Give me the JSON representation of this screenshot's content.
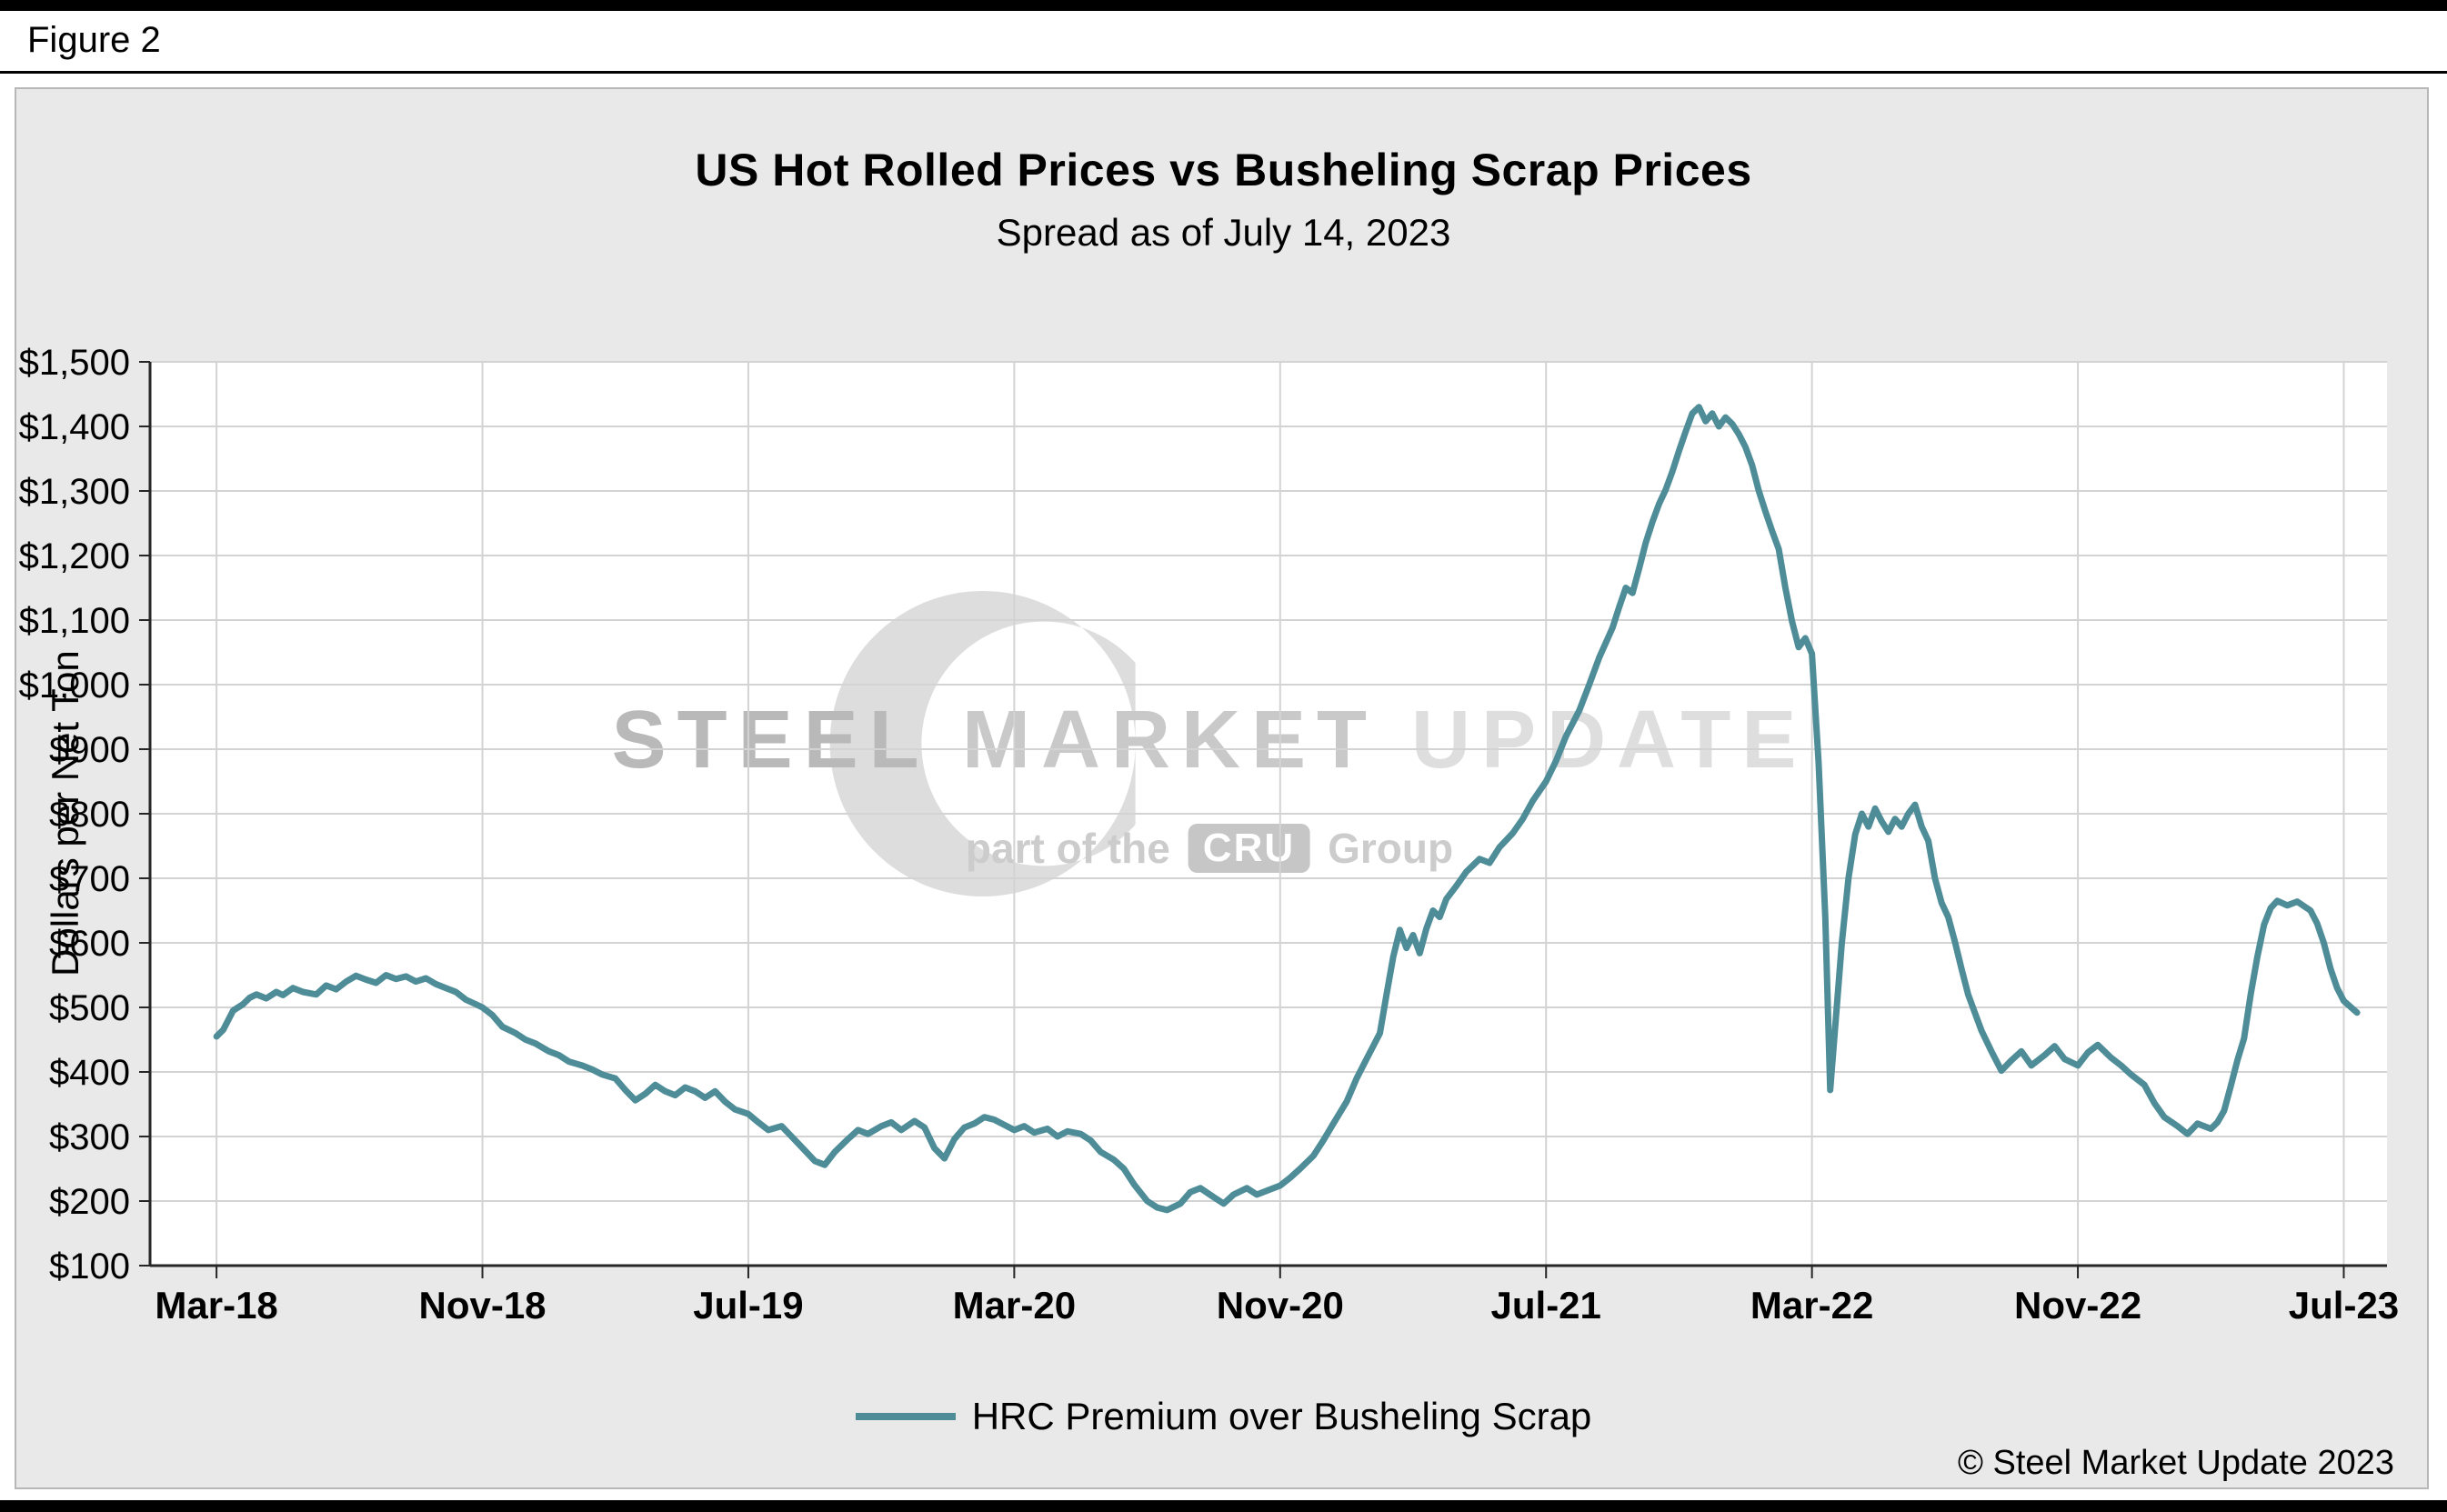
{
  "figure_label": "Figure 2",
  "chart": {
    "title": "US Hot Rolled Prices vs Busheling Scrap Prices",
    "subtitle": "Spread as of July 14, 2023",
    "ylabel": "Dollars per Net Ton",
    "legend_label": "HRC Premium over Busheling Scrap",
    "copyright": "© Steel Market Update 2023",
    "line_color": "#4e8d98"
  },
  "watermark": {
    "line1_a": "STEEL",
    "line1_b": "MARKET",
    "line1_c": "UPDATE",
    "line2_pre": "part of the",
    "line2_logo": "CRU",
    "line2_post": "Group"
  },
  "chart_data": {
    "type": "line",
    "title": "US Hot Rolled Prices vs Busheling Scrap Prices",
    "subtitle": "Spread as of July 14, 2023",
    "xlabel": "",
    "ylabel": "Dollars per Net Ton",
    "grid": true,
    "legend_position": "bottom",
    "y_range": [
      100,
      1500
    ],
    "y_step": 100,
    "y_ticks": [
      {
        "value": 100,
        "label": "$100"
      },
      {
        "value": 200,
        "label": "$200"
      },
      {
        "value": 300,
        "label": "$300"
      },
      {
        "value": 400,
        "label": "$400"
      },
      {
        "value": 500,
        "label": "$500"
      },
      {
        "value": 600,
        "label": "$600"
      },
      {
        "value": 700,
        "label": "$700"
      },
      {
        "value": 800,
        "label": "$800"
      },
      {
        "value": 900,
        "label": "$900"
      },
      {
        "value": 1000,
        "label": "$1,000"
      },
      {
        "value": 1100,
        "label": "$1,100"
      },
      {
        "value": 1200,
        "label": "$1,200"
      },
      {
        "value": 1300,
        "label": "$1,300"
      },
      {
        "value": 1400,
        "label": "$1,400"
      },
      {
        "value": 1500,
        "label": "$1,500"
      }
    ],
    "x_axis_range_months": [
      -2,
      65.3
    ],
    "x_unit": "months since Mar-2018",
    "x_ticks": [
      {
        "month": 0,
        "label": "Mar-18"
      },
      {
        "month": 8,
        "label": "Nov-18"
      },
      {
        "month": 16,
        "label": "Jul-19"
      },
      {
        "month": 24,
        "label": "Mar-20"
      },
      {
        "month": 32,
        "label": "Nov-20"
      },
      {
        "month": 40,
        "label": "Jul-21"
      },
      {
        "month": 48,
        "label": "Mar-22"
      },
      {
        "month": 56,
        "label": "Nov-22"
      },
      {
        "month": 64,
        "label": "Jul-23"
      }
    ],
    "series": [
      {
        "name": "HRC Premium over Busheling Scrap",
        "color": "#4e8d98",
        "points": [
          [
            0,
            455
          ],
          [
            0.2,
            465
          ],
          [
            0.5,
            495
          ],
          [
            0.8,
            505
          ],
          [
            1,
            515
          ],
          [
            1.2,
            520
          ],
          [
            1.5,
            514
          ],
          [
            1.8,
            524
          ],
          [
            2,
            519
          ],
          [
            2.3,
            530
          ],
          [
            2.6,
            524
          ],
          [
            3,
            520
          ],
          [
            3.3,
            534
          ],
          [
            3.6,
            528
          ],
          [
            3.9,
            540
          ],
          [
            4.2,
            549
          ],
          [
            4.5,
            543
          ],
          [
            4.8,
            538
          ],
          [
            5.1,
            550
          ],
          [
            5.4,
            544
          ],
          [
            5.7,
            548
          ],
          [
            6,
            540
          ],
          [
            6.3,
            545
          ],
          [
            6.6,
            536
          ],
          [
            6.9,
            530
          ],
          [
            7.2,
            524
          ],
          [
            7.5,
            512
          ],
          [
            7.8,
            505
          ],
          [
            8,
            500
          ],
          [
            8.3,
            488
          ],
          [
            8.6,
            470
          ],
          [
            9,
            460
          ],
          [
            9.3,
            450
          ],
          [
            9.6,
            444
          ],
          [
            10,
            432
          ],
          [
            10.3,
            426
          ],
          [
            10.6,
            416
          ],
          [
            11,
            410
          ],
          [
            11.3,
            404
          ],
          [
            11.6,
            396
          ],
          [
            12,
            390
          ],
          [
            12.3,
            372
          ],
          [
            12.6,
            356
          ],
          [
            12.9,
            366
          ],
          [
            13.2,
            380
          ],
          [
            13.5,
            370
          ],
          [
            13.8,
            364
          ],
          [
            14.1,
            376
          ],
          [
            14.4,
            370
          ],
          [
            14.7,
            360
          ],
          [
            15,
            370
          ],
          [
            15.3,
            354
          ],
          [
            15.6,
            342
          ],
          [
            16,
            335
          ],
          [
            16.3,
            322
          ],
          [
            16.6,
            310
          ],
          [
            17,
            316
          ],
          [
            17.3,
            300
          ],
          [
            17.6,
            284
          ],
          [
            18,
            262
          ],
          [
            18.3,
            256
          ],
          [
            18.6,
            276
          ],
          [
            19,
            296
          ],
          [
            19.3,
            310
          ],
          [
            19.6,
            304
          ],
          [
            20,
            316
          ],
          [
            20.3,
            322
          ],
          [
            20.6,
            310
          ],
          [
            21,
            324
          ],
          [
            21.3,
            314
          ],
          [
            21.6,
            282
          ],
          [
            21.9,
            266
          ],
          [
            22.2,
            296
          ],
          [
            22.5,
            314
          ],
          [
            22.8,
            320
          ],
          [
            23.1,
            330
          ],
          [
            23.4,
            326
          ],
          [
            23.7,
            318
          ],
          [
            24,
            310
          ],
          [
            24.3,
            316
          ],
          [
            24.6,
            306
          ],
          [
            25,
            312
          ],
          [
            25.3,
            300
          ],
          [
            25.6,
            308
          ],
          [
            26,
            304
          ],
          [
            26.3,
            294
          ],
          [
            26.6,
            276
          ],
          [
            27,
            264
          ],
          [
            27.3,
            250
          ],
          [
            27.6,
            226
          ],
          [
            28,
            200
          ],
          [
            28.3,
            190
          ],
          [
            28.6,
            186
          ],
          [
            29,
            196
          ],
          [
            29.3,
            214
          ],
          [
            29.6,
            220
          ],
          [
            30,
            206
          ],
          [
            30.3,
            196
          ],
          [
            30.6,
            210
          ],
          [
            31,
            220
          ],
          [
            31.3,
            210
          ],
          [
            31.6,
            216
          ],
          [
            32,
            224
          ],
          [
            32.3,
            236
          ],
          [
            32.6,
            250
          ],
          [
            33,
            270
          ],
          [
            33.3,
            294
          ],
          [
            33.6,
            320
          ],
          [
            34,
            354
          ],
          [
            34.3,
            390
          ],
          [
            34.6,
            420
          ],
          [
            35,
            460
          ],
          [
            35.2,
            520
          ],
          [
            35.4,
            578
          ],
          [
            35.6,
            620
          ],
          [
            35.8,
            592
          ],
          [
            36,
            612
          ],
          [
            36.2,
            584
          ],
          [
            36.4,
            622
          ],
          [
            36.6,
            650
          ],
          [
            36.8,
            640
          ],
          [
            37,
            668
          ],
          [
            37.3,
            688
          ],
          [
            37.6,
            710
          ],
          [
            38,
            730
          ],
          [
            38.3,
            724
          ],
          [
            38.6,
            748
          ],
          [
            39,
            770
          ],
          [
            39.3,
            792
          ],
          [
            39.6,
            820
          ],
          [
            40,
            850
          ],
          [
            40.3,
            882
          ],
          [
            40.6,
            920
          ],
          [
            41,
            960
          ],
          [
            41.3,
            1000
          ],
          [
            41.6,
            1042
          ],
          [
            42,
            1088
          ],
          [
            42.2,
            1120
          ],
          [
            42.4,
            1150
          ],
          [
            42.6,
            1142
          ],
          [
            42.8,
            1180
          ],
          [
            43,
            1220
          ],
          [
            43.2,
            1252
          ],
          [
            43.4,
            1280
          ],
          [
            43.6,
            1302
          ],
          [
            43.8,
            1330
          ],
          [
            44,
            1362
          ],
          [
            44.2,
            1392
          ],
          [
            44.4,
            1420
          ],
          [
            44.6,
            1430
          ],
          [
            44.8,
            1408
          ],
          [
            45,
            1420
          ],
          [
            45.2,
            1400
          ],
          [
            45.4,
            1414
          ],
          [
            45.6,
            1404
          ],
          [
            45.8,
            1388
          ],
          [
            46,
            1368
          ],
          [
            46.2,
            1340
          ],
          [
            46.4,
            1300
          ],
          [
            46.6,
            1268
          ],
          [
            46.8,
            1238
          ],
          [
            47,
            1210
          ],
          [
            47.2,
            1150
          ],
          [
            47.4,
            1098
          ],
          [
            47.6,
            1058
          ],
          [
            47.8,
            1072
          ],
          [
            48,
            1048
          ],
          [
            48.2,
            880
          ],
          [
            48.4,
            640
          ],
          [
            48.55,
            372
          ],
          [
            48.7,
            470
          ],
          [
            48.9,
            600
          ],
          [
            49.1,
            700
          ],
          [
            49.3,
            768
          ],
          [
            49.5,
            800
          ],
          [
            49.7,
            780
          ],
          [
            49.9,
            808
          ],
          [
            50.1,
            788
          ],
          [
            50.3,
            772
          ],
          [
            50.5,
            792
          ],
          [
            50.7,
            780
          ],
          [
            50.9,
            800
          ],
          [
            51.1,
            814
          ],
          [
            51.3,
            780
          ],
          [
            51.5,
            758
          ],
          [
            51.7,
            700
          ],
          [
            51.9,
            662
          ],
          [
            52.1,
            640
          ],
          [
            52.3,
            602
          ],
          [
            52.5,
            560
          ],
          [
            52.7,
            520
          ],
          [
            52.9,
            492
          ],
          [
            53.1,
            464
          ],
          [
            53.4,
            432
          ],
          [
            53.7,
            402
          ],
          [
            54,
            418
          ],
          [
            54.3,
            432
          ],
          [
            54.6,
            410
          ],
          [
            55,
            426
          ],
          [
            55.3,
            440
          ],
          [
            55.6,
            420
          ],
          [
            56,
            410
          ],
          [
            56.3,
            430
          ],
          [
            56.6,
            442
          ],
          [
            57,
            422
          ],
          [
            57.3,
            410
          ],
          [
            57.6,
            396
          ],
          [
            58,
            380
          ],
          [
            58.3,
            352
          ],
          [
            58.6,
            330
          ],
          [
            59,
            316
          ],
          [
            59.3,
            304
          ],
          [
            59.6,
            320
          ],
          [
            60,
            312
          ],
          [
            60.2,
            322
          ],
          [
            60.4,
            340
          ],
          [
            60.6,
            378
          ],
          [
            60.8,
            418
          ],
          [
            61,
            452
          ],
          [
            61.2,
            520
          ],
          [
            61.4,
            578
          ],
          [
            61.6,
            628
          ],
          [
            61.8,
            654
          ],
          [
            62,
            665
          ],
          [
            62.3,
            658
          ],
          [
            62.6,
            664
          ],
          [
            63,
            650
          ],
          [
            63.2,
            630
          ],
          [
            63.4,
            600
          ],
          [
            63.6,
            560
          ],
          [
            63.8,
            530
          ],
          [
            64,
            510
          ],
          [
            64.4,
            492
          ]
        ]
      }
    ]
  }
}
